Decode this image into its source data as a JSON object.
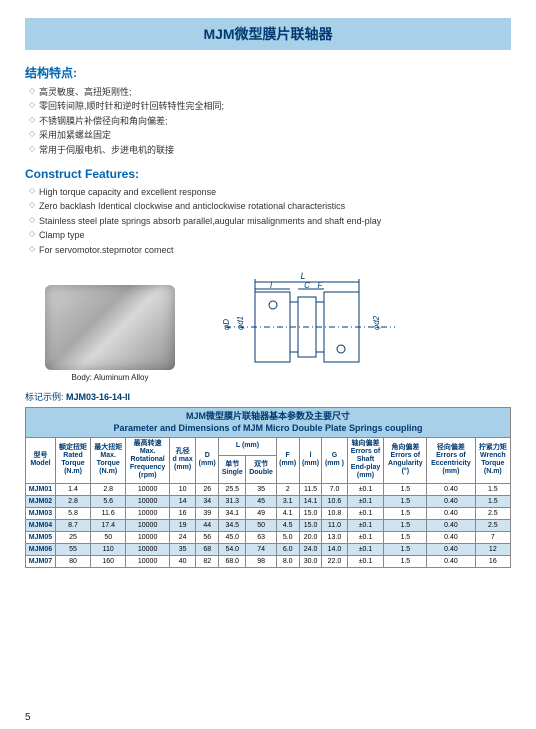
{
  "title": "MJM微型膜片联轴器",
  "features_cn": {
    "heading": "结构特点:",
    "items": [
      "高灵敏度、高扭矩刚性;",
      "零回转间隙,顺时针和逆时针回转特性完全相同;",
      "不锈钢膜片补偿径向和角向偏差;",
      "采用加紧螺丝固定",
      "常用于伺服电机、步进电机的联接"
    ]
  },
  "features_en": {
    "heading": "Construct Features:",
    "items": [
      "High torque capacity and excellent response",
      "Zero backlash Identical clockwise and anticlockwise rotational characteristics",
      "Stainless steel plate springs absorb parallel,augular misalignments and shaft end-play",
      "Clamp type",
      "For servomotor.stepmotor comect"
    ]
  },
  "body_caption": "Body: Aluminum Alloy",
  "diagram_labels": {
    "L": "L",
    "l": "l",
    "C": "C",
    "F": "F",
    "D": "φD",
    "d1": "φd1",
    "d2": "φd2"
  },
  "marking_prefix": "标记示例:",
  "marking_code": "MJM03-16-14-II",
  "table": {
    "caption_cn": "MJM微型膜片联轴器基本参数及主要尺寸",
    "caption_en": "Parameter and Dimensions of MJM Micro Double Plate Springs coupling",
    "headers": [
      "型号\nModel",
      "额定扭矩\nRated\nTorque\n(N.m)",
      "最大扭矩\nMax.\nTorque\n(N.m)",
      "最高转速\nMax.\nRotational\nFrequency\n(rpm)",
      "孔径\nd max\n(mm)",
      "D\n(mm)",
      "L (mm)",
      "F\n(mm)",
      "l\n(mm)",
      "G\n(mm )",
      "轴向偏差\nErrors of\nShaft\nEnd-play\n(mm)",
      "角向偏差\nErrors of\nAngularity\n(°)",
      "径向偏差\nErrors of\nEccentricity\n(mm)",
      "拧紧力矩\nWrench\nTorque\n(N.m)"
    ],
    "sub_l": [
      "单节\nSingle",
      "双节\nDouble"
    ],
    "rows": [
      [
        "MJM01",
        "1.4",
        "2.8",
        "10000",
        "10",
        "26",
        "25.5",
        "35",
        "2",
        "11.5",
        "7.0",
        "±0.1",
        "1.5",
        "0.40",
        "1.5"
      ],
      [
        "MJM02",
        "2.8",
        "5.6",
        "10000",
        "14",
        "34",
        "31.3",
        "45",
        "3.1",
        "14.1",
        "10.6",
        "±0.1",
        "1.5",
        "0.40",
        "1.5"
      ],
      [
        "MJM03",
        "5.8",
        "11.6",
        "10000",
        "16",
        "39",
        "34.1",
        "49",
        "4.1",
        "15.0",
        "10.8",
        "±0.1",
        "1.5",
        "0.40",
        "2.5"
      ],
      [
        "MJM04",
        "8.7",
        "17.4",
        "10000",
        "19",
        "44",
        "34.5",
        "50",
        "4.5",
        "15.0",
        "11.0",
        "±0.1",
        "1.5",
        "0.40",
        "2.5"
      ],
      [
        "MJM05",
        "25",
        "50",
        "10000",
        "24",
        "56",
        "45.0",
        "63",
        "5.0",
        "20.0",
        "13.0",
        "±0.1",
        "1.5",
        "0.40",
        "7"
      ],
      [
        "MJM06",
        "55",
        "110",
        "10000",
        "35",
        "68",
        "54.0",
        "74",
        "6.0",
        "24.0",
        "14.0",
        "±0.1",
        "1.5",
        "0.40",
        "12"
      ],
      [
        "MJM07",
        "80",
        "160",
        "10000",
        "40",
        "82",
        "68.0",
        "98",
        "8.0",
        "30.0",
        "22.0",
        "±0.1",
        "1.5",
        "0.40",
        "16"
      ]
    ]
  },
  "page_number": "5"
}
